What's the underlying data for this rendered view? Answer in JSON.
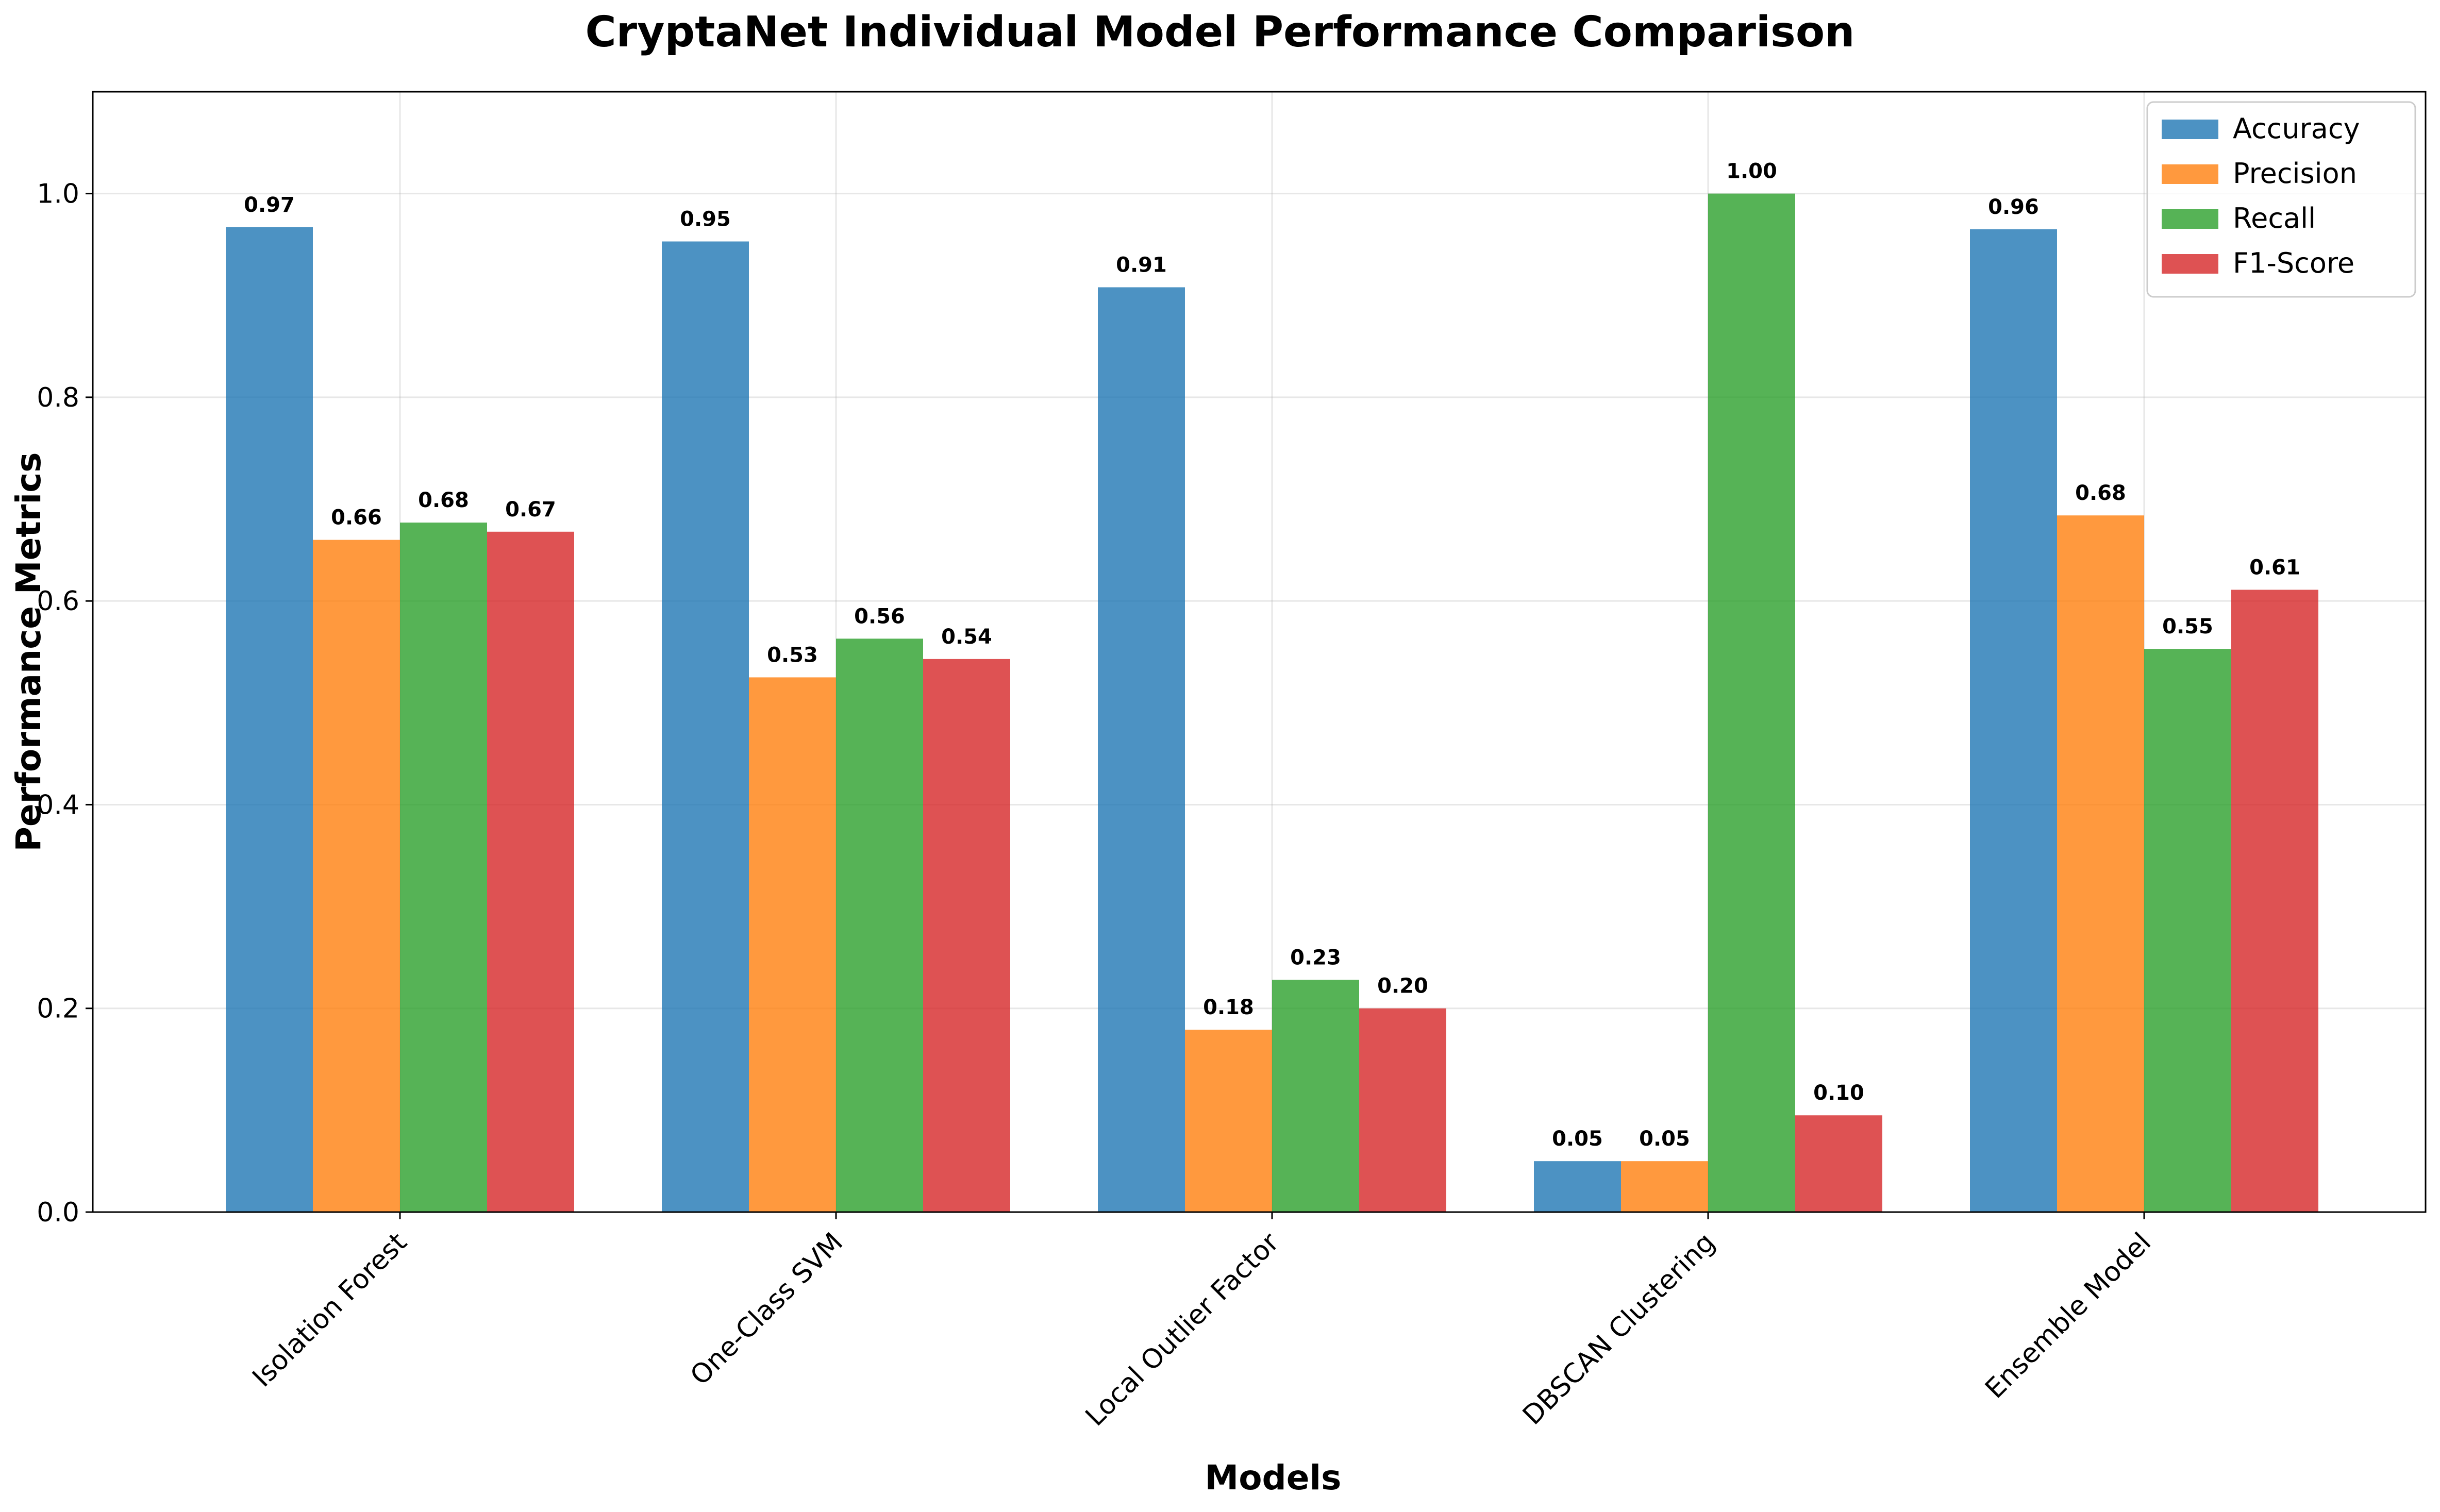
{
  "chart_data": {
    "type": "bar",
    "title": "CryptaNet Individual Model Performance Comparison",
    "xlabel": "Models",
    "ylabel": "Performance Metrics",
    "categories": [
      "Isolation Forest",
      "One-Class SVM",
      "Local Outlier Factor",
      "DBSCAN Clustering",
      "Ensemble Model"
    ],
    "series": [
      {
        "name": "Accuracy",
        "color": "#1f77b4",
        "values": [
          0.967,
          0.953,
          0.908,
          0.05,
          0.965
        ],
        "labels": [
          "0.97",
          "0.95",
          "0.91",
          "0.05",
          "0.96"
        ]
      },
      {
        "name": "Precision",
        "color": "#ff7f0e",
        "values": [
          0.66,
          0.525,
          0.179,
          0.05,
          0.684
        ],
        "labels": [
          "0.66",
          "0.53",
          "0.18",
          "0.05",
          "0.68"
        ]
      },
      {
        "name": "Recall",
        "color": "#2ca02c",
        "values": [
          0.677,
          0.563,
          0.228,
          1.0,
          0.553
        ],
        "labels": [
          "0.68",
          "0.56",
          "0.23",
          "1.00",
          "0.55"
        ]
      },
      {
        "name": "F1-Score",
        "color": "#d62728",
        "values": [
          0.668,
          0.543,
          0.2,
          0.095,
          0.611
        ],
        "labels": [
          "0.67",
          "0.54",
          "0.20",
          "0.10",
          "0.61"
        ]
      }
    ],
    "ylim": [
      0,
      1.1
    ],
    "yticks": [
      0.0,
      0.2,
      0.4,
      0.6,
      0.8,
      1.0
    ],
    "ytick_labels": [
      "0.0",
      "0.2",
      "0.4",
      "0.6",
      "0.8",
      "1.0"
    ],
    "grid": true,
    "legend_position": "top-right",
    "bar_opacity": 0.8
  }
}
